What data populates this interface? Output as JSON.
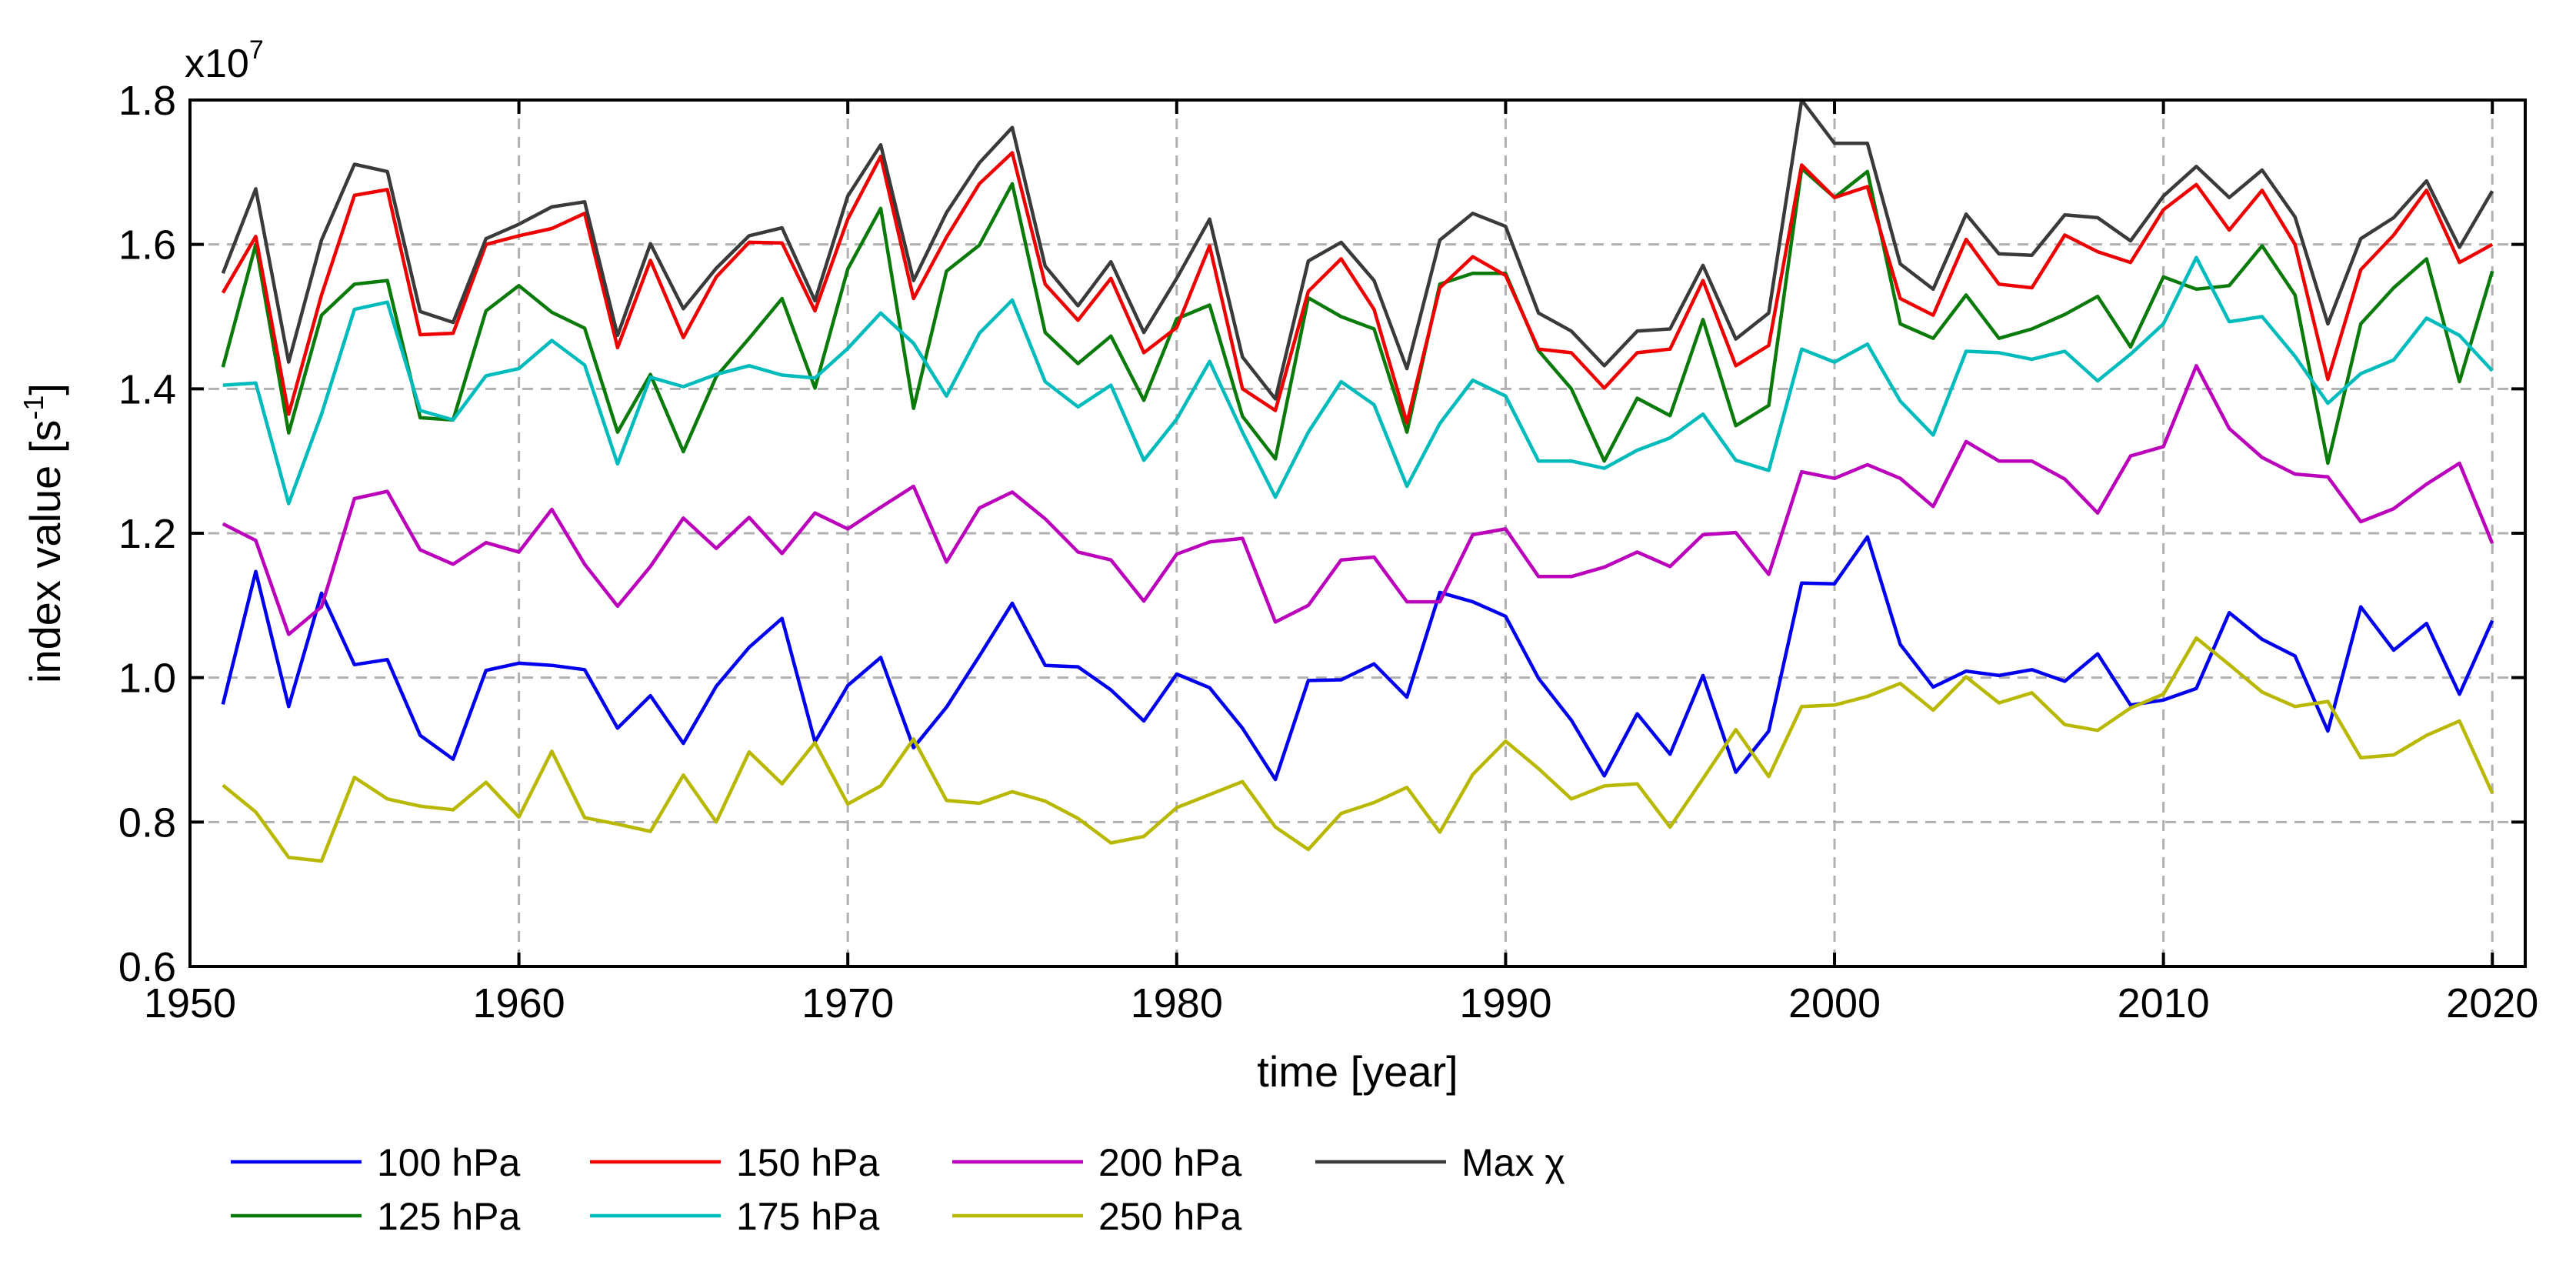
{
  "chart_data": {
    "type": "line",
    "title": "",
    "xlabel": "time [year]",
    "ylabel_main": "index value [s",
    "ylabel_sup": "-1",
    "ylabel_end": "]",
    "y_multiplier_base": "x10",
    "y_multiplier_exp": "7",
    "xlim": [
      1950,
      2021
    ],
    "ylim": [
      0.6,
      1.8
    ],
    "xticks": [
      1950,
      1960,
      1970,
      1980,
      1990,
      2000,
      2010,
      2020
    ],
    "xtick_labels": [
      "1950",
      "1960",
      "1970",
      "1980",
      "1990",
      "2000",
      "2010",
      "2020"
    ],
    "yticks": [
      0.6,
      0.8,
      1.0,
      1.2,
      1.4,
      1.6,
      1.8
    ],
    "ytick_labels": [
      "0.6",
      "0.8",
      "1.0",
      "1.2",
      "1.4",
      "1.6",
      "1.8"
    ],
    "grid": true,
    "legend_position": "bottom",
    "x": [
      1951,
      1952,
      1953,
      1954,
      1955,
      1956,
      1957,
      1958,
      1959,
      1960,
      1961,
      1962,
      1963,
      1964,
      1965,
      1966,
      1967,
      1968,
      1969,
      1970,
      1971,
      1972,
      1973,
      1974,
      1975,
      1976,
      1977,
      1978,
      1979,
      1980,
      1981,
      1982,
      1983,
      1984,
      1985,
      1986,
      1987,
      1988,
      1989,
      1990,
      1991,
      1992,
      1993,
      1994,
      1995,
      1996,
      1997,
      1998,
      1999,
      2000,
      2001,
      2002,
      2003,
      2004,
      2005,
      2006,
      2007,
      2008,
      2009,
      2010,
      2011,
      2012,
      2013,
      2014,
      2015,
      2016,
      2017,
      2018,
      2019,
      2020
    ],
    "series": [
      {
        "name": "100 hPa",
        "color": "#0000ee",
        "values": [
          0.963,
          1.147,
          0.96,
          1.117,
          1.018,
          1.025,
          0.92,
          0.887,
          1.01,
          1.02,
          1.017,
          1.011,
          0.93,
          0.975,
          0.909,
          0.988,
          1.042,
          1.082,
          0.911,
          0.989,
          1.028,
          0.903,
          0.959,
          1.03,
          1.103,
          1.017,
          1.015,
          0.983,
          0.94,
          1.005,
          0.986,
          0.93,
          0.859,
          0.996,
          0.997,
          1.019,
          0.973,
          1.118,
          1.105,
          1.085,
          0.999,
          0.941,
          0.864,
          0.95,
          0.894,
          1.003,
          0.869,
          0.926,
          1.131,
          1.13,
          1.195,
          1.046,
          0.987,
          1.009,
          1.003,
          1.011,
          0.995,
          1.033,
          0.962,
          0.969,
          0.985,
          1.09,
          1.053,
          1.03,
          0.926,
          1.098,
          1.038,
          1.075,
          0.977,
          1.079
        ]
      },
      {
        "name": "125 hPa",
        "color": "#0a7a0a",
        "values": [
          1.43,
          1.6,
          1.339,
          1.502,
          1.545,
          1.55,
          1.36,
          1.357,
          1.508,
          1.543,
          1.506,
          1.484,
          1.34,
          1.42,
          1.313,
          1.417,
          1.47,
          1.525,
          1.401,
          1.566,
          1.65,
          1.373,
          1.563,
          1.599,
          1.684,
          1.478,
          1.435,
          1.473,
          1.384,
          1.497,
          1.516,
          1.362,
          1.303,
          1.526,
          1.5,
          1.483,
          1.34,
          1.545,
          1.56,
          1.56,
          1.453,
          1.4,
          1.3,
          1.387,
          1.363,
          1.496,
          1.349,
          1.377,
          1.705,
          1.665,
          1.701,
          1.49,
          1.47,
          1.53,
          1.47,
          1.483,
          1.503,
          1.528,
          1.458,
          1.555,
          1.538,
          1.543,
          1.598,
          1.53,
          1.297,
          1.49,
          1.54,
          1.58,
          1.41,
          1.563
        ]
      },
      {
        "name": "150 hPa",
        "color": "#ee0000",
        "values": [
          1.533,
          1.611,
          1.365,
          1.53,
          1.668,
          1.676,
          1.475,
          1.477,
          1.6,
          1.612,
          1.622,
          1.643,
          1.457,
          1.578,
          1.471,
          1.555,
          1.603,
          1.602,
          1.508,
          1.635,
          1.722,
          1.525,
          1.61,
          1.684,
          1.727,
          1.545,
          1.495,
          1.553,
          1.45,
          1.485,
          1.598,
          1.4,
          1.37,
          1.535,
          1.58,
          1.51,
          1.353,
          1.54,
          1.583,
          1.557,
          1.455,
          1.45,
          1.401,
          1.45,
          1.455,
          1.55,
          1.432,
          1.46,
          1.71,
          1.665,
          1.68,
          1.525,
          1.502,
          1.607,
          1.545,
          1.54,
          1.613,
          1.59,
          1.575,
          1.648,
          1.683,
          1.62,
          1.675,
          1.6,
          1.413,
          1.565,
          1.613,
          1.675,
          1.575,
          1.6
        ]
      },
      {
        "name": "175 hPa",
        "color": "#00bbbb",
        "values": [
          1.405,
          1.408,
          1.241,
          1.365,
          1.51,
          1.52,
          1.37,
          1.357,
          1.418,
          1.428,
          1.467,
          1.433,
          1.296,
          1.416,
          1.403,
          1.42,
          1.432,
          1.419,
          1.415,
          1.456,
          1.505,
          1.463,
          1.39,
          1.477,
          1.523,
          1.41,
          1.375,
          1.405,
          1.301,
          1.358,
          1.438,
          1.34,
          1.25,
          1.34,
          1.41,
          1.378,
          1.265,
          1.352,
          1.412,
          1.39,
          1.3,
          1.3,
          1.29,
          1.315,
          1.332,
          1.365,
          1.301,
          1.287,
          1.455,
          1.437,
          1.462,
          1.383,
          1.336,
          1.452,
          1.45,
          1.441,
          1.452,
          1.411,
          1.448,
          1.49,
          1.582,
          1.493,
          1.5,
          1.445,
          1.38,
          1.421,
          1.44,
          1.498,
          1.474,
          1.425
        ]
      },
      {
        "name": "200 hPa",
        "color": "#bb00bb",
        "values": [
          1.213,
          1.19,
          1.06,
          1.098,
          1.248,
          1.258,
          1.177,
          1.157,
          1.187,
          1.174,
          1.233,
          1.157,
          1.099,
          1.154,
          1.221,
          1.179,
          1.222,
          1.172,
          1.228,
          1.206,
          1.236,
          1.265,
          1.16,
          1.235,
          1.257,
          1.22,
          1.174,
          1.163,
          1.106,
          1.171,
          1.188,
          1.193,
          1.077,
          1.1,
          1.163,
          1.167,
          1.105,
          1.105,
          1.198,
          1.206,
          1.14,
          1.14,
          1.153,
          1.174,
          1.154,
          1.198,
          1.201,
          1.143,
          1.285,
          1.276,
          1.295,
          1.276,
          1.237,
          1.327,
          1.3,
          1.3,
          1.275,
          1.228,
          1.307,
          1.32,
          1.432,
          1.345,
          1.305,
          1.282,
          1.278,
          1.216,
          1.234,
          1.268,
          1.297,
          1.186
        ]
      },
      {
        "name": "250 hPa",
        "color": "#b8b800",
        "values": [
          0.851,
          0.814,
          0.751,
          0.746,
          0.862,
          0.832,
          0.822,
          0.817,
          0.855,
          0.807,
          0.898,
          0.806,
          0.797,
          0.787,
          0.865,
          0.8,
          0.897,
          0.853,
          0.91,
          0.825,
          0.85,
          0.915,
          0.83,
          0.826,
          0.842,
          0.829,
          0.805,
          0.771,
          0.78,
          0.82,
          0.838,
          0.856,
          0.793,
          0.762,
          0.812,
          0.827,
          0.848,
          0.786,
          0.866,
          0.912,
          0.874,
          0.832,
          0.85,
          0.853,
          0.793,
          0.86,
          0.928,
          0.863,
          0.96,
          0.962,
          0.974,
          0.992,
          0.955,
          1.001,
          0.965,
          0.979,
          0.935,
          0.927,
          0.958,
          0.977,
          1.055,
          1.018,
          0.98,
          0.96,
          0.967,
          0.889,
          0.893,
          0.92,
          0.94,
          0.84
        ]
      },
      {
        "name": "Max χ",
        "color": "#3a3a3a",
        "values": [
          1.56,
          1.677,
          1.437,
          1.606,
          1.711,
          1.701,
          1.507,
          1.492,
          1.608,
          1.628,
          1.652,
          1.659,
          1.474,
          1.601,
          1.511,
          1.567,
          1.612,
          1.623,
          1.522,
          1.667,
          1.738,
          1.55,
          1.644,
          1.713,
          1.762,
          1.57,
          1.515,
          1.576,
          1.478,
          1.553,
          1.635,
          1.444,
          1.386,
          1.577,
          1.603,
          1.55,
          1.428,
          1.606,
          1.643,
          1.625,
          1.505,
          1.48,
          1.432,
          1.48,
          1.483,
          1.571,
          1.469,
          1.505,
          1.8,
          1.74,
          1.74,
          1.573,
          1.538,
          1.642,
          1.587,
          1.585,
          1.641,
          1.637,
          1.605,
          1.667,
          1.708,
          1.665,
          1.703,
          1.638,
          1.49,
          1.608,
          1.637,
          1.688,
          1.596,
          1.674
        ]
      }
    ]
  }
}
